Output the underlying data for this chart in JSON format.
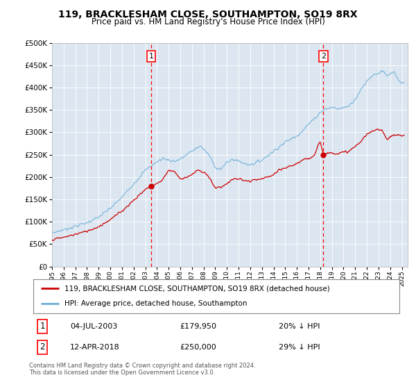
{
  "title": "119, BRACKLESHAM CLOSE, SOUTHAMPTON, SO19 8RX",
  "subtitle": "Price paid vs. HM Land Registry's House Price Index (HPI)",
  "plot_bg_color": "#dce6f1",
  "hpi_color": "#6baed6",
  "price_color": "#cc0000",
  "marker1_date_x": 2003.5,
  "marker1_price": 179950,
  "marker1_label": "04-JUL-2003",
  "marker1_amount": "£179,950",
  "marker1_note": "20% ↓ HPI",
  "marker2_date_x": 2018.27,
  "marker2_price": 250000,
  "marker2_label": "12-APR-2018",
  "marker2_amount": "£250,000",
  "marker2_note": "29% ↓ HPI",
  "legend_property": "119, BRACKLESHAM CLOSE, SOUTHAMPTON, SO19 8RX (detached house)",
  "legend_hpi": "HPI: Average price, detached house, Southampton",
  "footer": "Contains HM Land Registry data © Crown copyright and database right 2024.\nThis data is licensed under the Open Government Licence v3.0.",
  "ylim": [
    0,
    500000
  ],
  "xlim_start": 1995,
  "xlim_end": 2025.5
}
